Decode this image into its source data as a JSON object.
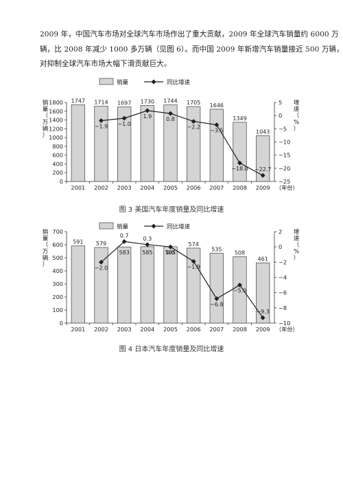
{
  "paragraph": {
    "lines": [
      "2009 年，中国汽车市场对全球汽车市场作出了重大贡献，2009 年全球汽车销量约 6000 万",
      "辆，比 2008 年减少 1000 多万辆（见图 6）。而中国 2009 年新增汽车销量接近 500 万辆，",
      "对抑制全球汽车市场大幅下滑贡献巨大。"
    ]
  },
  "charts": [
    {
      "caption": "图 3  美国汽车年度销量及同比增速",
      "left_axis_title": "销量（万辆）",
      "right_axis_title": "增速（%）",
      "x_unit": "（年份）"
    },
    {
      "caption": "图 4  日本汽车年度销量及同比增速",
      "left_axis_title": "销量（万辆）",
      "right_axis_title": "增速（%）",
      "x_unit": "（年份）"
    }
  ],
  "colors": {
    "bar_fill": "#d4d4d4",
    "bar_stroke": "#555555",
    "line": "#222222"
  },
  "chart_data": [
    {
      "type": "bar",
      "title": "图 3  美国汽车年度销量及同比增速",
      "categories": [
        "2001",
        "2002",
        "2003",
        "2004",
        "2005",
        "2006",
        "2007",
        "2008",
        "2009"
      ],
      "legend": [
        "销量",
        "同比增速"
      ],
      "legend_position": "top",
      "grid": false,
      "series": [
        {
          "name": "销量",
          "type": "bar",
          "axis": "left",
          "values": [
            1747,
            1714,
            1697,
            1730,
            1744,
            1705,
            1646,
            1349,
            1043
          ],
          "labels": [
            "1747",
            "1714",
            "1697",
            "1730",
            "1744",
            "1705",
            "1646",
            "1349",
            "1043"
          ]
        },
        {
          "name": "同比增速",
          "type": "line",
          "axis": "right",
          "values": [
            null,
            -1.9,
            -1.0,
            1.9,
            0.8,
            -2.2,
            -3.5,
            -18.0,
            -22.7
          ],
          "labels": [
            "",
            "−1.9",
            "−1.0",
            "1.9",
            "0.8",
            "−2.2",
            "−3.5",
            "−18.0",
            "−22.7"
          ]
        }
      ],
      "left_axis": {
        "min": 0,
        "max": 1800,
        "ticks": [
          "0",
          "200",
          "400",
          "600",
          "800",
          "1000",
          "1200",
          "1400",
          "1600",
          "1800"
        ]
      },
      "right_axis": {
        "min": -25,
        "max": 5,
        "ticks": [
          "5",
          "0",
          "−5",
          "−10",
          "−15",
          "−20",
          "−25"
        ]
      }
    },
    {
      "type": "bar",
      "title": "图 4  日本汽车年度销量及同比增速",
      "categories": [
        "2001",
        "2002",
        "2003",
        "2004",
        "2005",
        "2006",
        "2007",
        "2008",
        "2009"
      ],
      "legend": [
        "销量",
        "同比增速"
      ],
      "legend_position": "top",
      "grid": false,
      "series": [
        {
          "name": "销量",
          "type": "bar",
          "axis": "left",
          "values": [
            591,
            579,
            583,
            585,
            585,
            574,
            535,
            508,
            461
          ],
          "labels": [
            "591",
            "579",
            "583",
            "585",
            "585",
            "574",
            "535",
            "508",
            "461"
          ]
        },
        {
          "name": "同比增速",
          "type": "line",
          "axis": "right",
          "values": [
            null,
            -2.0,
            0.7,
            0.3,
            0.0,
            -1.9,
            -6.8,
            -5.0,
            -9.3
          ],
          "labels": [
            "",
            "−2.0",
            "0.7",
            "0.3",
            "0.0",
            "−1.9",
            "−6.8",
            "−5.0",
            "−9.3"
          ]
        }
      ],
      "left_axis": {
        "min": 0,
        "max": 700,
        "ticks": [
          "0",
          "100",
          "200",
          "300",
          "400",
          "500",
          "600",
          "700"
        ]
      },
      "right_axis": {
        "min": -10,
        "max": 2,
        "ticks": [
          "2",
          "0",
          "−2",
          "−4",
          "−6",
          "−8",
          "−10"
        ]
      }
    }
  ]
}
